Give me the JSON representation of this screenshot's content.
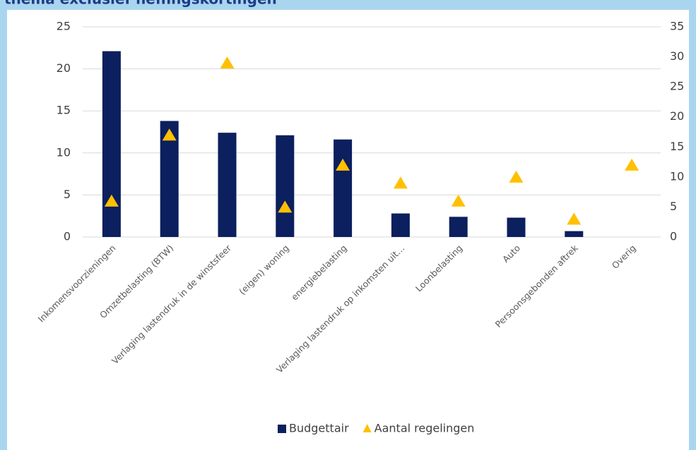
{
  "chart_data": {
    "type": "bar_triangle",
    "title": "thema exclusief heffingskortingen",
    "categories": [
      "Inkomensvoorzieningen",
      "Omzetbelasting (BTW)",
      "Verlaging lastendruk in de winstsfeer",
      "(eigen) woning",
      "energiebelasting",
      "Verlaging lastendruk op inkomsten uit…",
      "Loonbelasting",
      "Auto",
      "Persoonsgebonden aftrek",
      "Overig"
    ],
    "series": [
      {
        "name": "Budgettair",
        "color": "#0c1f5e",
        "marker": "bar",
        "values": [
          22.1,
          13.8,
          12.4,
          12.1,
          11.6,
          2.8,
          2.4,
          2.3,
          0.7,
          null
        ]
      },
      {
        "name": "Aantal regelingen",
        "color": "#ffc000",
        "marker": "triangle",
        "axis": "y2",
        "values": [
          6,
          17,
          29,
          5,
          12,
          9,
          6,
          10,
          3,
          12
        ]
      }
    ],
    "ylim": [
      0,
      25
    ],
    "yticks": [
      0,
      5,
      10,
      15,
      20,
      25
    ],
    "y2lim": [
      0,
      35
    ],
    "y2ticks": [
      0,
      5,
      10,
      15,
      20,
      25,
      30,
      35
    ],
    "grid": true,
    "legend": "bottom"
  }
}
